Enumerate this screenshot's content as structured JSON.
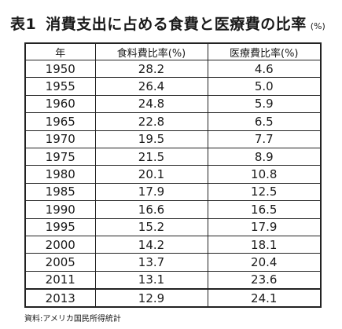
{
  "title": {
    "label": "表1",
    "text": "消費支出に占める食費と医療費の比率",
    "unit": "(%)"
  },
  "table": {
    "headers": [
      "年",
      "食料費比率(%)",
      "医療費比率(%)"
    ],
    "rows": [
      [
        "1950",
        "28.2",
        "4.6"
      ],
      [
        "1955",
        "26.4",
        "5.0"
      ],
      [
        "1960",
        "24.8",
        "5.9"
      ],
      [
        "1965",
        "22.8",
        "6.5"
      ],
      [
        "1970",
        "19.5",
        "7.7"
      ],
      [
        "1975",
        "21.5",
        "8.9"
      ],
      [
        "1980",
        "20.1",
        "10.8"
      ],
      [
        "1985",
        "17.9",
        "12.5"
      ],
      [
        "1990",
        "16.6",
        "16.5"
      ],
      [
        "1995",
        "15.2",
        "17.9"
      ],
      [
        "2000",
        "14.2",
        "18.1"
      ],
      [
        "2005",
        "13.7",
        "20.4"
      ],
      [
        "2011",
        "13.1",
        "23.6"
      ],
      [
        "2013",
        "12.9",
        "24.1"
      ]
    ]
  },
  "source": "資料:アメリカ国民所得統計"
}
